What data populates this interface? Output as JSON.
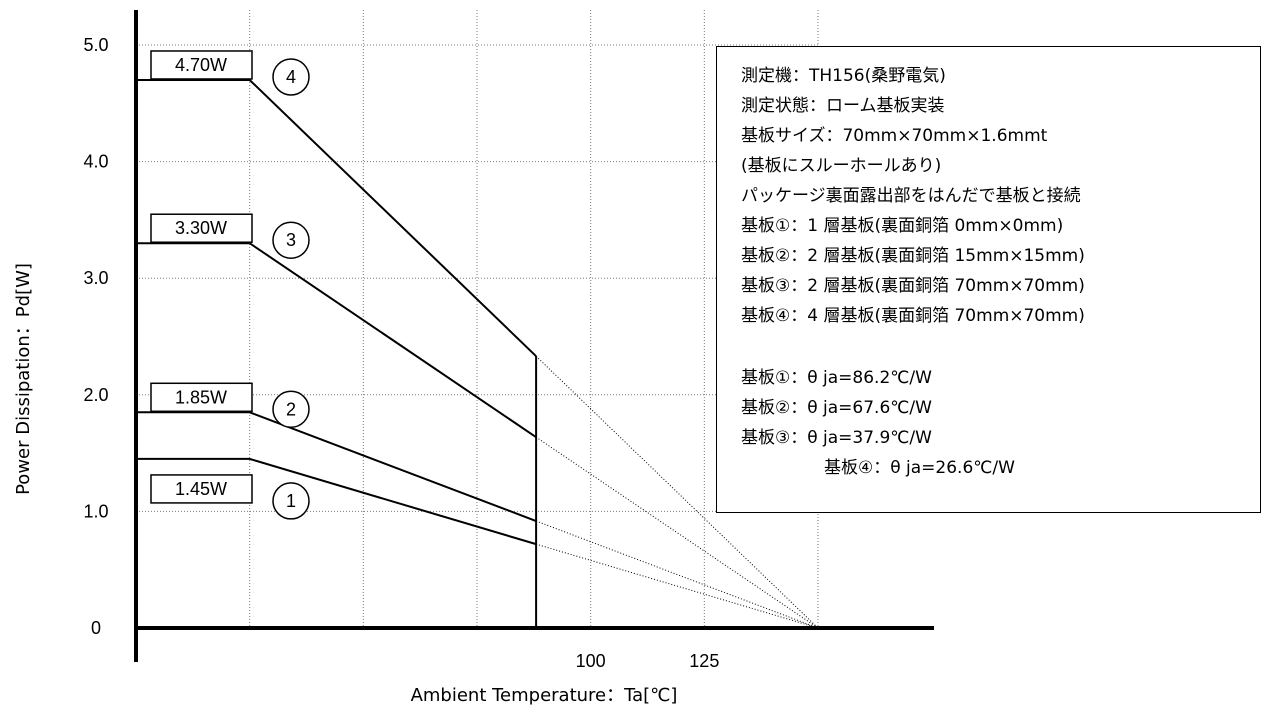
{
  "chart_data": {
    "type": "line",
    "xlabel": "Ambient Temperature：Ta[℃]",
    "ylabel": "Power Dissipation：Pd[W]",
    "xlim": [
      0,
      150
    ],
    "ylim": [
      0,
      5.0
    ],
    "x_ticks": [
      "100",
      "125"
    ],
    "y_ticks": [
      "0",
      "1.0",
      "2.0",
      "3.0",
      "4.0",
      "5.0"
    ],
    "grid": true,
    "t_max": 150,
    "ta_knee": 25,
    "ta_cutoff": 88,
    "series": [
      {
        "marker": "1",
        "label": "1.45W",
        "pd_max": 1.45
      },
      {
        "marker": "2",
        "label": "1.85W",
        "pd_max": 1.85
      },
      {
        "marker": "3",
        "label": "3.30W",
        "pd_max": 3.3
      },
      {
        "marker": "4",
        "label": "4.70W",
        "pd_max": 4.7
      }
    ],
    "annotation_lines": [
      "測定機：TH156(桑野電気)",
      "測定状態：ローム基板実装",
      "基板サイズ：70mm×70mm×1.6mmt",
      "(基板にスルーホールあり)",
      "パッケージ裏面露出部をはんだで基板と接続",
      "基板①：1 層基板(裏面銅箔 0mm×0mm)",
      "基板②：2 層基板(裏面銅箔 15mm×15mm)",
      "基板③：2 層基板(裏面銅箔 70mm×70mm)",
      "基板④：4 層基板(裏面銅箔 70mm×70mm)",
      "基板①：θ ja=86.2℃/W",
      "基板②：θ ja=67.6℃/W",
      "基板③：θ ja=37.9℃/W",
      "基板④：θ ja=26.6℃/W"
    ]
  }
}
